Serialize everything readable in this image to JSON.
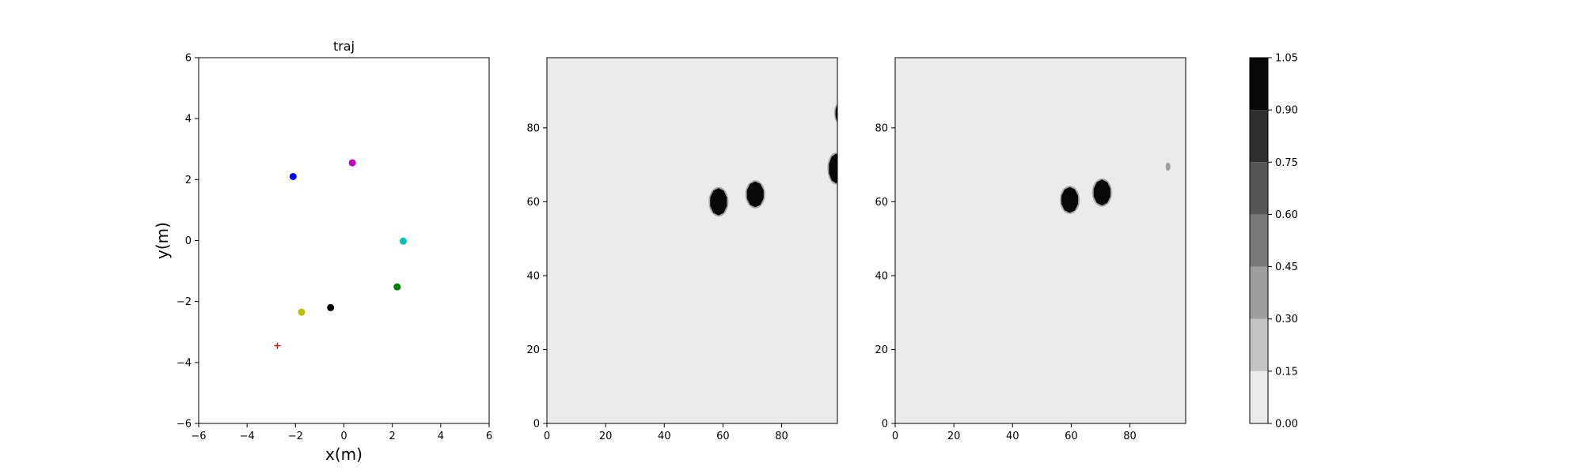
{
  "chart_data": [
    {
      "type": "scatter",
      "title": "traj",
      "xlabel": "x(m)",
      "ylabel": "y(m)",
      "xlim": [
        -6,
        6
      ],
      "ylim": [
        -6,
        6
      ],
      "xticks": [
        "−6",
        "−4",
        "−2",
        "0",
        "2",
        "4",
        "6"
      ],
      "yticks": [
        "−6",
        "−4",
        "−2",
        "0",
        "2",
        "4",
        "6"
      ],
      "grid": false,
      "points": [
        {
          "x": -2.1,
          "y": 2.1,
          "color": "#0000ff",
          "marker": "circle"
        },
        {
          "x": 0.35,
          "y": 2.55,
          "color": "#bf00bf",
          "marker": "circle"
        },
        {
          "x": 2.45,
          "y": -0.02,
          "color": "#00bfbf",
          "marker": "circle"
        },
        {
          "x": 2.2,
          "y": -1.52,
          "color": "#008000",
          "marker": "circle"
        },
        {
          "x": -0.55,
          "y": -2.2,
          "color": "#000000",
          "marker": "circle"
        },
        {
          "x": -1.75,
          "y": -2.35,
          "color": "#bfbf00",
          "marker": "circle"
        },
        {
          "x": -2.75,
          "y": -3.45,
          "color": "#ff0000",
          "marker": "plus"
        }
      ]
    },
    {
      "type": "heatmap",
      "xlim": [
        0,
        99
      ],
      "ylim": [
        0,
        99
      ],
      "xticks": [
        "0",
        "20",
        "40",
        "60",
        "80"
      ],
      "yticks": [
        "0",
        "20",
        "40",
        "60",
        "80"
      ],
      "background_value": 0.05,
      "blobs": [
        {
          "cx": 58.5,
          "cy": 60,
          "rx": 3,
          "ry": 3.7,
          "value": 1.0
        },
        {
          "cx": 71,
          "cy": 62,
          "rx": 3,
          "ry": 3.5,
          "value": 1.0
        },
        {
          "cx": 98.5,
          "cy": 69,
          "rx": 2.5,
          "ry": 4,
          "value": 1.0
        },
        {
          "cx": 99.5,
          "cy": 84,
          "rx": 1.2,
          "ry": 2.5,
          "value": 1.0
        }
      ]
    },
    {
      "type": "heatmap",
      "xlim": [
        0,
        99
      ],
      "ylim": [
        0,
        99
      ],
      "xticks": [
        "0",
        "20",
        "40",
        "60",
        "80"
      ],
      "yticks": [
        "0",
        "20",
        "40",
        "60",
        "80"
      ],
      "background_value": 0.05,
      "blobs": [
        {
          "cx": 59.5,
          "cy": 60.5,
          "rx": 3,
          "ry": 3.5,
          "value": 1.0
        },
        {
          "cx": 70.5,
          "cy": 62.5,
          "rx": 3,
          "ry": 3.5,
          "value": 1.0
        },
        {
          "cx": 93,
          "cy": 69.5,
          "rx": 0.4,
          "ry": 0.8,
          "value": 0.3
        }
      ]
    }
  ],
  "colorbar": {
    "levels": [
      0.0,
      0.15,
      0.3,
      0.45,
      0.6,
      0.75,
      0.9,
      1.05
    ],
    "labels": [
      "0.00",
      "0.15",
      "0.30",
      "0.45",
      "0.60",
      "0.75",
      "0.90",
      "1.05"
    ],
    "colors": [
      "#ebebeb",
      "#c4c4c4",
      "#9e9e9e",
      "#7a7a7a",
      "#555555",
      "#2f2f2f",
      "#080808"
    ]
  }
}
